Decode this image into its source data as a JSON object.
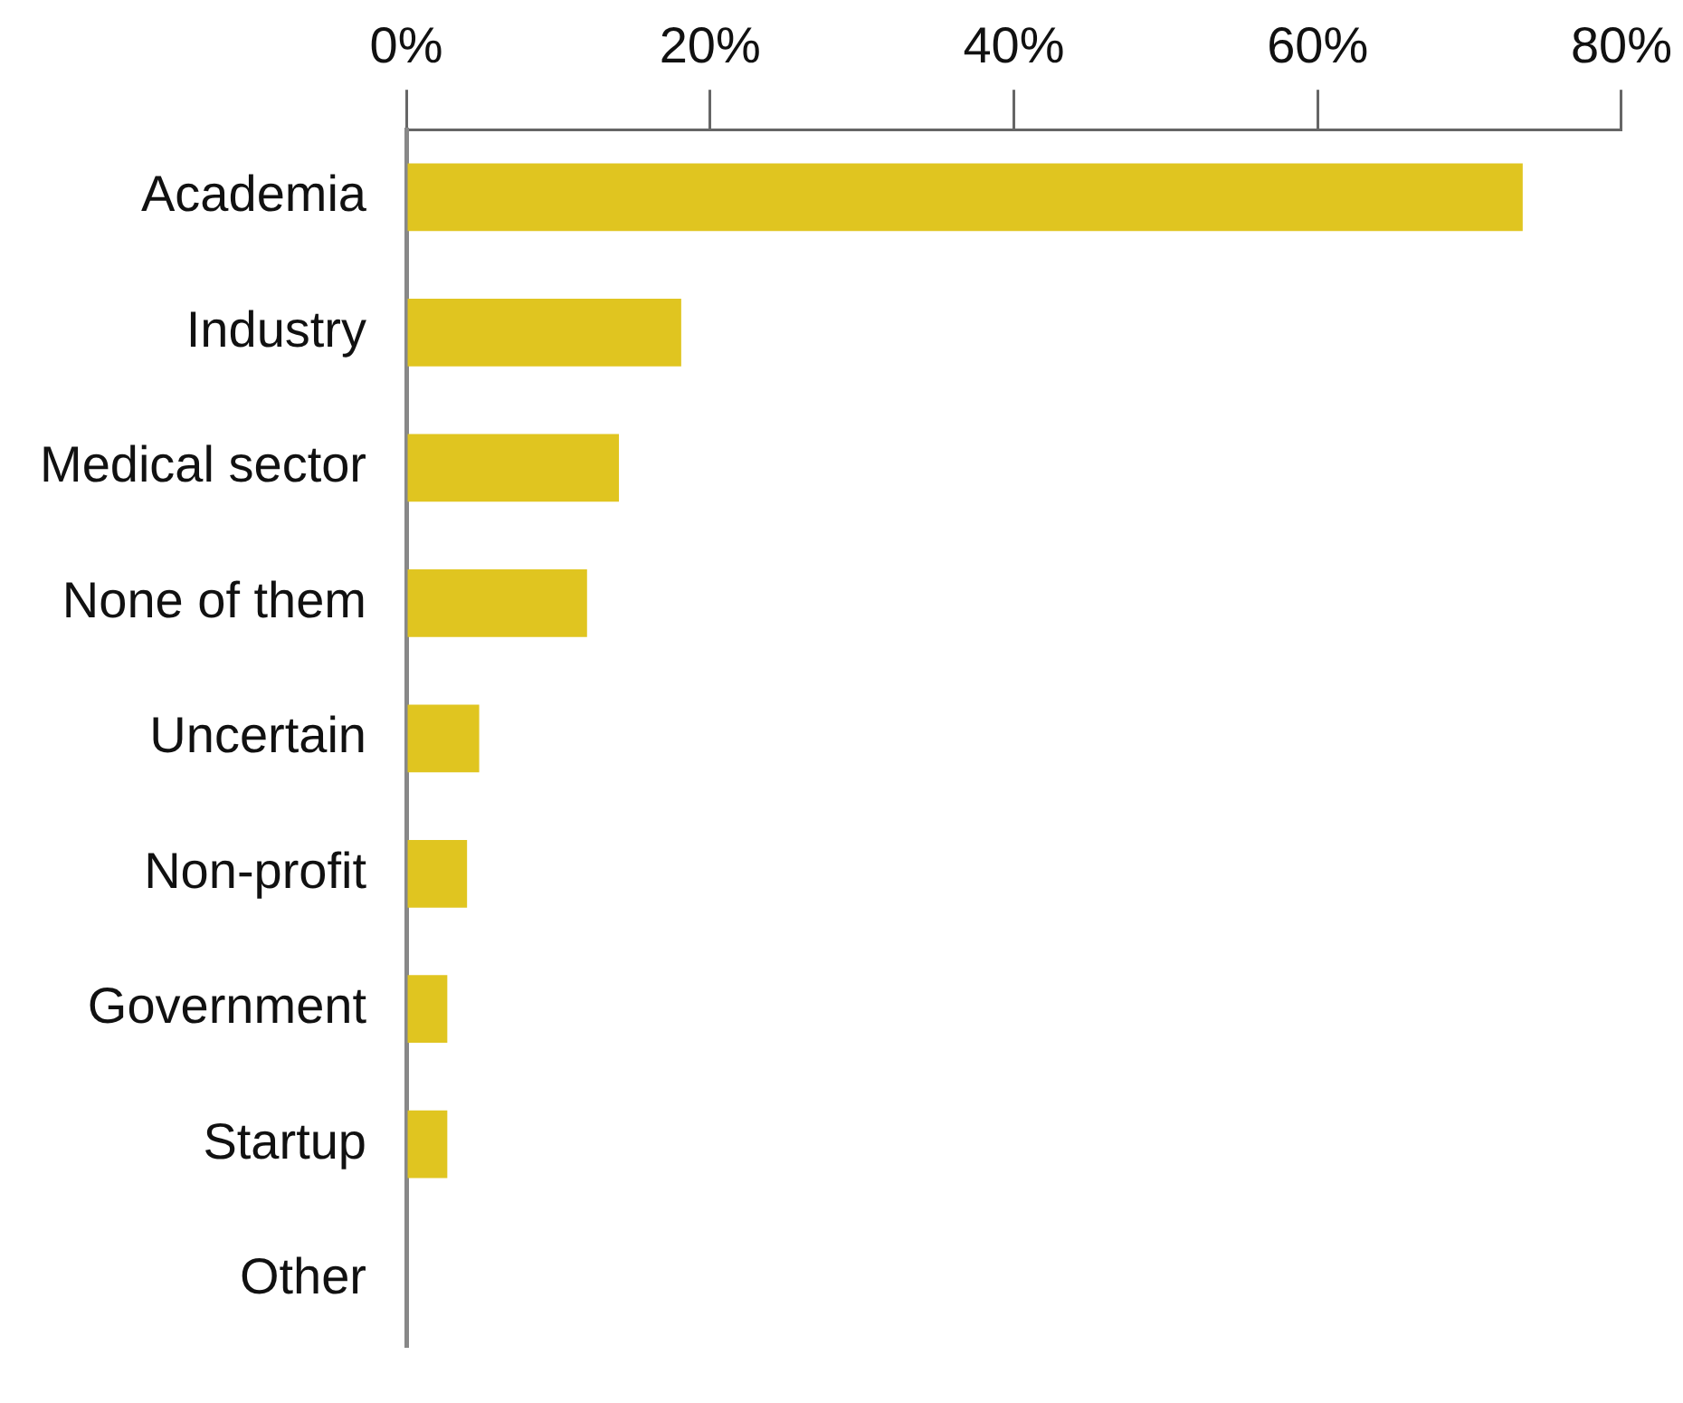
{
  "chart_data": {
    "type": "bar",
    "orientation": "horizontal",
    "categories": [
      "Academia",
      "Industry",
      "Medical sector",
      "None of them",
      "Uncertain",
      "Non-profit",
      "Government",
      "Startup",
      "Other"
    ],
    "values": [
      73.5,
      18.1,
      14.0,
      11.9,
      4.8,
      4.0,
      2.7,
      2.7,
      0
    ],
    "color": "#e0c520",
    "xlim": [
      0,
      80
    ],
    "xticks": [
      {
        "value": 0,
        "label": "0%"
      },
      {
        "value": 20,
        "label": "20%"
      },
      {
        "value": 40,
        "label": "40%"
      },
      {
        "value": 60,
        "label": "60%"
      },
      {
        "value": 80,
        "label": "80%"
      }
    ],
    "grid": false,
    "legend": false
  }
}
